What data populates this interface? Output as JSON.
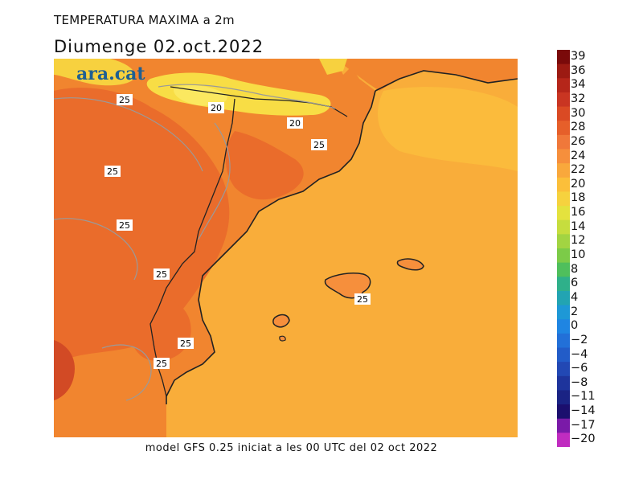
{
  "header": {
    "title": "TEMPERATURA MAXIMA a 2m",
    "subtitle": "Diumenge  02.oct.2022"
  },
  "logo": {
    "text": "ara.cat"
  },
  "footer": {
    "text": "model GFS 0.25 iniciat a les 00 UTC del 02 oct 2022"
  },
  "map": {
    "contour_labels": [
      "25",
      "20",
      "20",
      "25",
      "25",
      "25",
      "25",
      "25",
      "25",
      "25"
    ]
  },
  "legend": {
    "items": [
      {
        "label": "39",
        "color": "#7a0a0a"
      },
      {
        "label": "36",
        "color": "#9c1a12"
      },
      {
        "label": "34",
        "color": "#b5261a"
      },
      {
        "label": "32",
        "color": "#c93522"
      },
      {
        "label": "30",
        "color": "#da4a24"
      },
      {
        "label": "28",
        "color": "#e65f2a"
      },
      {
        "label": "26",
        "color": "#f0783a"
      },
      {
        "label": "24",
        "color": "#f68f3c"
      },
      {
        "label": "22",
        "color": "#f9a83c"
      },
      {
        "label": "20",
        "color": "#fbbf3a"
      },
      {
        "label": "18",
        "color": "#f6d23e"
      },
      {
        "label": "16",
        "color": "#e4e23e"
      },
      {
        "label": "14",
        "color": "#c6dd3e"
      },
      {
        "label": "12",
        "color": "#a2d442"
      },
      {
        "label": "10",
        "color": "#7ccb48"
      },
      {
        "label": "8",
        "color": "#4fbf5c"
      },
      {
        "label": "6",
        "color": "#2fb08a"
      },
      {
        "label": "4",
        "color": "#22a4b2"
      },
      {
        "label": "2",
        "color": "#1e98d6"
      },
      {
        "label": "0",
        "color": "#1f85e2"
      },
      {
        "label": "−2",
        "color": "#2270d8"
      },
      {
        "label": "−4",
        "color": "#225cc8"
      },
      {
        "label": "−6",
        "color": "#2248b4"
      },
      {
        "label": "−8",
        "color": "#1e349c"
      },
      {
        "label": "−11",
        "color": "#1a2384"
      },
      {
        "label": "−14",
        "color": "#1b0f6e"
      },
      {
        "label": "−17",
        "color": "#7a1aa8"
      },
      {
        "label": "−20",
        "color": "#c02cc0"
      }
    ]
  },
  "colors": {
    "sea": "#f9ad3a",
    "land": "#f1852f",
    "warm_land": "#e8682b",
    "cool_high": "#f7d13f"
  }
}
